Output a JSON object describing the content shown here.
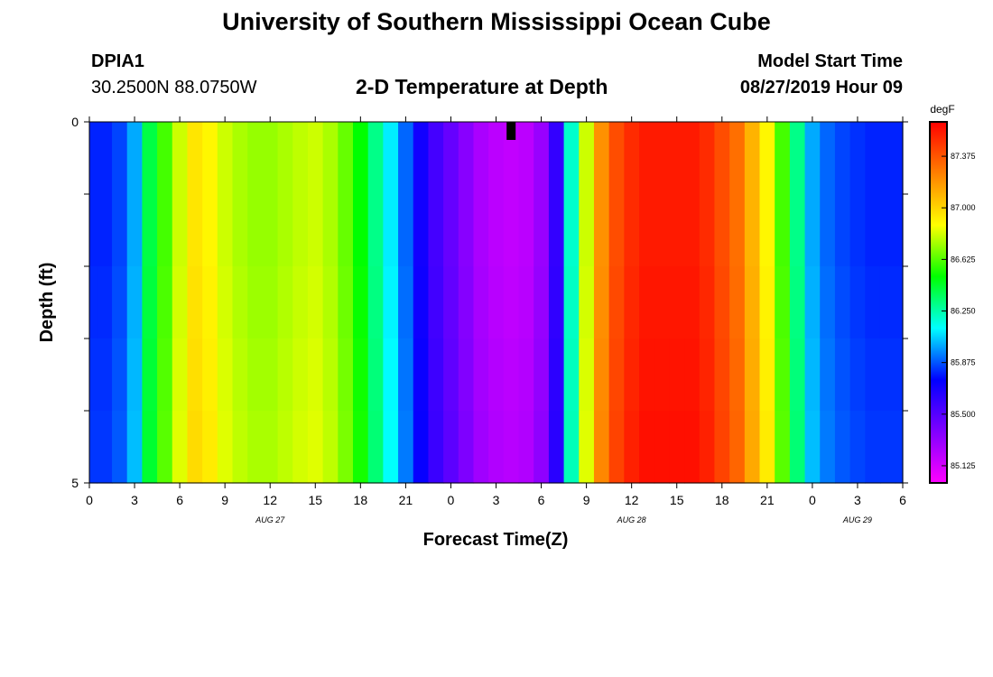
{
  "header": {
    "title": "University of Southern Mississippi Ocean Cube",
    "station_id": "DPIA1",
    "coordinates": "30.2500N 88.0750W",
    "model_start_label": "Model Start Time",
    "model_start_value": "08/27/2019 Hour 09"
  },
  "footer": {
    "title": "University of Southern Mississippi Ocean Cube"
  },
  "chart_data": {
    "type": "heatmap",
    "title": "2-D Temperature at Depth",
    "xlabel": "Forecast Time(Z)",
    "ylabel": "Depth (ft)",
    "colorbar_label": "degF",
    "x_range_hours": [
      0,
      54
    ],
    "y_range": [
      0,
      5
    ],
    "y_ticks": [
      0,
      1,
      2,
      3,
      4,
      5
    ],
    "y_tick_labels": [
      "0",
      "",
      "",
      "",
      "",
      "5"
    ],
    "x_tick_labels": [
      "0",
      "3",
      "6",
      "9",
      "12",
      "15",
      "18",
      "21",
      "0",
      "3",
      "6",
      "9",
      "12",
      "15",
      "18",
      "21",
      "0",
      "3",
      "6"
    ],
    "date_labels": [
      {
        "label": "AUG 27",
        "hour": 12
      },
      {
        "label": "AUG 28",
        "hour": 36
      },
      {
        "label": "AUG 29",
        "hour": 51
      }
    ],
    "colorbar_ticks": [
      85.125,
      85.5,
      85.875,
      86.25,
      86.625,
      87.0,
      87.375
    ],
    "colorbar_tick_labels": [
      "85.125",
      "85.500",
      "85.875",
      "86.250",
      "86.625",
      "87.000",
      "87.375"
    ],
    "color_range": [
      85.0,
      87.625
    ],
    "colormap": [
      "#ff00ff",
      "#8000ff",
      "#0000ff",
      "#00ffff",
      "#00ff00",
      "#ffff00",
      "#ff8000",
      "#ff0000"
    ],
    "time_hours": [
      0,
      1,
      2,
      3,
      4,
      5,
      6,
      7,
      8,
      9,
      10,
      11,
      12,
      13,
      14,
      15,
      16,
      17,
      18,
      19,
      20,
      21,
      22,
      23,
      24,
      25,
      26,
      27,
      28,
      29,
      30,
      31,
      32,
      33,
      34,
      35,
      36,
      37,
      38,
      39,
      40,
      41,
      42,
      43,
      44,
      45,
      46,
      47,
      48,
      49,
      50,
      51,
      52,
      53,
      54
    ],
    "temperature_degF": [
      85.8,
      85.8,
      85.85,
      86.0,
      86.4,
      86.6,
      86.8,
      86.95,
      86.9,
      86.8,
      86.75,
      86.72,
      86.72,
      86.75,
      86.78,
      86.8,
      86.75,
      86.65,
      86.5,
      86.3,
      86.1,
      85.9,
      85.7,
      85.55,
      85.45,
      85.35,
      85.25,
      85.2,
      85.18,
      85.2,
      85.3,
      85.6,
      86.2,
      86.8,
      87.2,
      87.4,
      87.5,
      87.55,
      87.55,
      87.55,
      87.55,
      87.5,
      87.4,
      87.3,
      87.1,
      86.9,
      86.6,
      86.3,
      86.0,
      85.9,
      85.85,
      85.82,
      85.8,
      85.8,
      85.8
    ],
    "depth_offset_degF": [
      0.0,
      0.0,
      0.01,
      0.02,
      0.03
    ],
    "missing_marker": {
      "hour": 28,
      "depth_from": 0,
      "depth_to": 0.25
    }
  }
}
